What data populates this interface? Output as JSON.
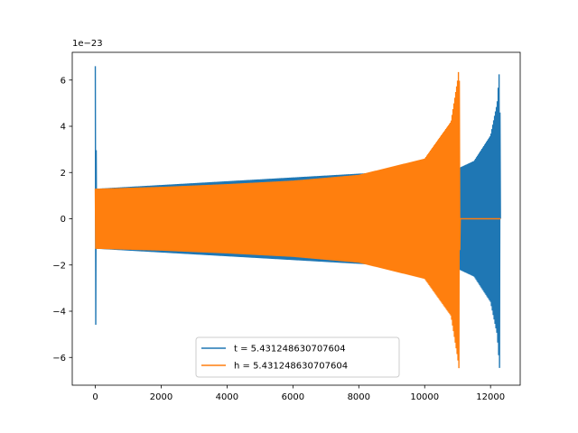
{
  "chart_data": {
    "type": "line",
    "title": "",
    "xlabel": "",
    "ylabel": "",
    "y_offset_label": "1e−23",
    "xlim": [
      -700,
      12900
    ],
    "ylim": [
      -7.2,
      7.2
    ],
    "x_ticks": [
      0,
      2000,
      4000,
      6000,
      8000,
      10000,
      12000
    ],
    "x_tick_labels": [
      "0",
      "2000",
      "4000",
      "6000",
      "8000",
      "10000",
      "12000"
    ],
    "y_ticks": [
      -6,
      -4,
      -2,
      0,
      2,
      4,
      6
    ],
    "y_tick_labels": [
      "−6",
      "−4",
      "−2",
      "0",
      "2",
      "4",
      "6"
    ],
    "grid": false,
    "legend_position": "bottom-center",
    "colors": {
      "blue": "#1f77b4",
      "orange": "#ff7f0e"
    },
    "series": [
      {
        "name": "t = 5.431248630707604",
        "color": "#1f77b4",
        "envelope": [
          {
            "x": 0,
            "upper": 6.6,
            "lower": -6.3
          },
          {
            "x": 40,
            "upper": 1.3,
            "lower": -1.3
          },
          {
            "x": 11050,
            "upper": 2.2,
            "lower": -2.2
          },
          {
            "x": 11500,
            "upper": 2.5,
            "lower": -2.5
          },
          {
            "x": 12000,
            "upper": 3.6,
            "lower": -3.6
          },
          {
            "x": 12200,
            "upper": 5.0,
            "lower": -5.0
          },
          {
            "x": 12280,
            "upper": 6.7,
            "lower": -6.6
          },
          {
            "x": 12300,
            "upper": 0,
            "lower": 0
          }
        ]
      },
      {
        "name": "h = 5.431248630707604",
        "color": "#ff7f0e",
        "envelope": [
          {
            "x": 0,
            "upper": 1.3,
            "lower": -1.3
          },
          {
            "x": 2000,
            "upper": 1.38,
            "lower": -1.38
          },
          {
            "x": 4000,
            "upper": 1.5,
            "lower": -1.5
          },
          {
            "x": 6000,
            "upper": 1.65,
            "lower": -1.65
          },
          {
            "x": 8000,
            "upper": 1.9,
            "lower": -1.9
          },
          {
            "x": 10000,
            "upper": 2.6,
            "lower": -2.6
          },
          {
            "x": 10800,
            "upper": 4.2,
            "lower": -4.2
          },
          {
            "x": 11000,
            "upper": 6.0,
            "lower": -6.0
          },
          {
            "x": 11050,
            "upper": 6.7,
            "lower": -6.6
          },
          {
            "x": 11070,
            "upper": 0,
            "lower": 0
          },
          {
            "x": 12300,
            "upper": 0,
            "lower": 0
          }
        ]
      }
    ]
  }
}
